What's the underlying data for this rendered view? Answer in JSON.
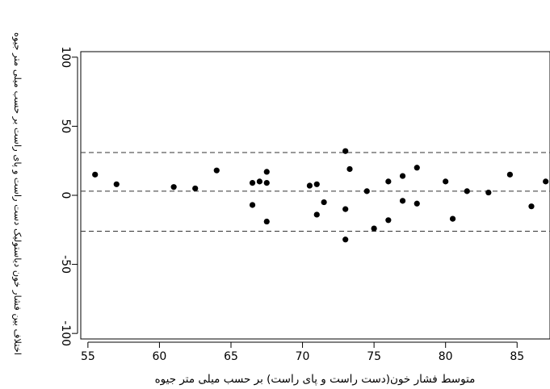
{
  "chart_data": {
    "type": "scatter",
    "title": "",
    "xlabel": "متوسط فشار خون(دست راست و پای راست) بر حسب میلی متر جیوه",
    "ylabel": "اختلاف بین فشار خون دیاستولیک دست راست و پای راست بر حسب میلی متر جیوه",
    "xlim": [
      54.5,
      87.3
    ],
    "ylim": [
      -104,
      104
    ],
    "x_ticks": [
      55,
      60,
      65,
      70,
      75,
      80,
      85
    ],
    "y_ticks": [
      -100,
      -50,
      0,
      50,
      100
    ],
    "x_tick_labels": [
      "55",
      "60",
      "65",
      "70",
      "75",
      "80",
      "85"
    ],
    "y_tick_labels": [
      "-100",
      "-50",
      "0",
      "50",
      "100"
    ],
    "grid": false,
    "reference_lines": [
      {
        "y": 31,
        "style": "dashed"
      },
      {
        "y": 3,
        "style": "dashed"
      },
      {
        "y": -26,
        "style": "dashed"
      }
    ],
    "series": [
      {
        "points": [
          [
            55.5,
            15
          ],
          [
            57,
            8
          ],
          [
            61,
            6
          ],
          [
            62.5,
            5
          ],
          [
            64,
            18
          ],
          [
            66.5,
            9
          ],
          [
            66.5,
            -7
          ],
          [
            67,
            10
          ],
          [
            67.5,
            17
          ],
          [
            67.5,
            9
          ],
          [
            67.5,
            -19
          ],
          [
            70.5,
            7
          ],
          [
            71,
            8
          ],
          [
            71,
            -14
          ],
          [
            71.5,
            -5
          ],
          [
            73,
            32
          ],
          [
            73.3,
            19
          ],
          [
            73,
            -10
          ],
          [
            73,
            -32
          ],
          [
            74.5,
            3
          ],
          [
            75,
            -24
          ],
          [
            76,
            10
          ],
          [
            76,
            -18
          ],
          [
            77,
            14
          ],
          [
            77,
            -4
          ],
          [
            78,
            20
          ],
          [
            78,
            -6
          ],
          [
            80,
            10
          ],
          [
            80.5,
            -17
          ],
          [
            81.5,
            3
          ],
          [
            83,
            2
          ],
          [
            84.5,
            15
          ],
          [
            86,
            -8
          ],
          [
            87,
            10
          ]
        ]
      }
    ]
  }
}
